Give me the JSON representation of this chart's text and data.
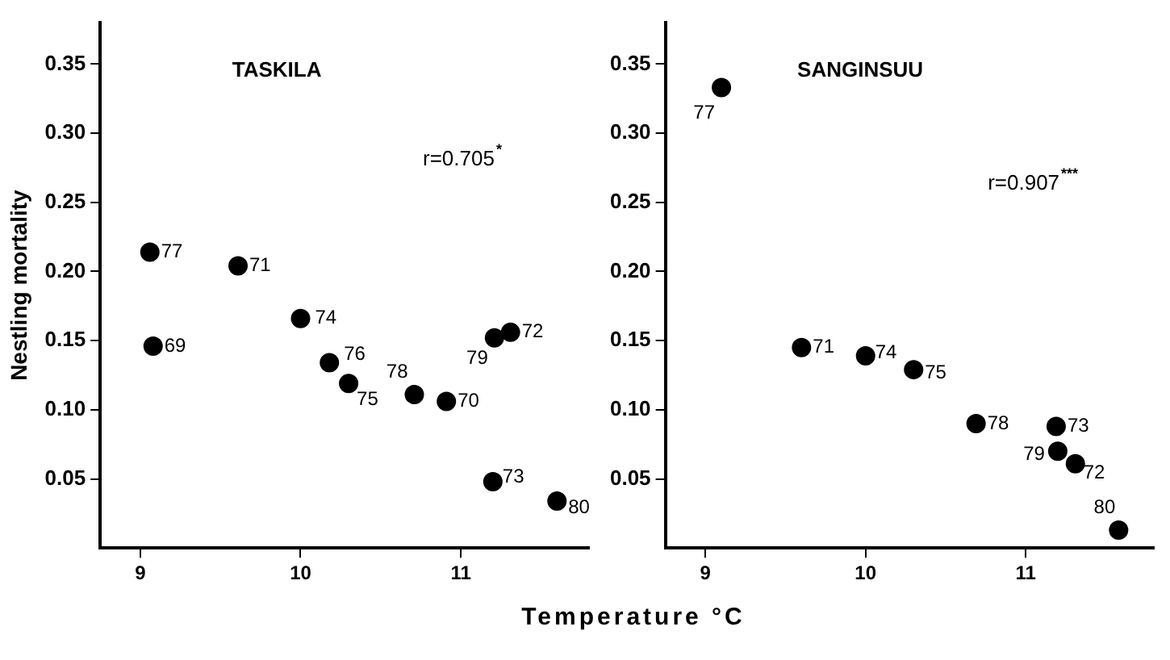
{
  "chart_data": [
    {
      "type": "scatter",
      "title": "TASKILA",
      "ylabel": "Nestling mortality",
      "xlabel": "Temperature °C",
      "xlim": [
        8.75,
        11.8
      ],
      "ylim": [
        0,
        0.38
      ],
      "xticks": [
        9,
        10,
        11
      ],
      "yticks": [
        {
          "value": 0.05,
          "label": "0.05"
        },
        {
          "value": 0.1,
          "label": "0.10"
        },
        {
          "value": 0.15,
          "label": "0.15"
        },
        {
          "value": 0.2,
          "label": "0.20"
        },
        {
          "value": 0.25,
          "label": "0.25"
        },
        {
          "value": 0.3,
          "label": "0.30"
        },
        {
          "value": 0.35,
          "label": "0.35"
        }
      ],
      "grid": false,
      "marker": "circle",
      "legend": false,
      "series": [
        {
          "color": "#000000",
          "x": [
            9.06,
            9.61,
            10.0,
            9.08,
            10.18,
            10.3,
            10.71,
            10.91,
            11.21,
            11.31,
            11.2,
            11.6
          ],
          "values": [
            0.214,
            0.204,
            0.166,
            0.146,
            0.134,
            0.119,
            0.111,
            0.106,
            0.152,
            0.156,
            0.048,
            0.034
          ]
        }
      ],
      "annotations": [
        "r=0.705$^{*}$",
        {
          "text": "77",
          "x": 9.06,
          "y": 0.214
        },
        {
          "text": "71",
          "x": 9.61,
          "y": 0.204
        },
        {
          "text": "74",
          "x": 10.0,
          "y": 0.166
        },
        {
          "text": "69",
          "x": 9.08,
          "y": 0.146
        },
        {
          "text": "76",
          "x": 10.18,
          "y": 0.134
        },
        {
          "text": "75",
          "x": 10.3,
          "y": 0.119
        },
        {
          "text": "78",
          "x": 10.71,
          "y": 0.111
        },
        {
          "text": "70",
          "x": 10.91,
          "y": 0.106
        },
        {
          "text": "79",
          "x": 11.21,
          "y": 0.152
        },
        {
          "text": "72",
          "x": 11.31,
          "y": 0.156
        },
        {
          "text": "73",
          "x": 11.2,
          "y": 0.048
        },
        {
          "text": "80",
          "x": 11.6,
          "y": 0.034
        }
      ]
    },
    {
      "type": "scatter",
      "title": "SANGINSUU",
      "xlim": [
        8.75,
        11.8
      ],
      "ylim": [
        0,
        0.38
      ],
      "xticks": [
        9,
        10,
        11
      ],
      "yticks": [
        {
          "value": 0.05,
          "label": "0.05"
        },
        {
          "value": 0.1,
          "label": "0.10"
        },
        {
          "value": 0.15,
          "label": "0.15"
        },
        {
          "value": 0.2,
          "label": "0.20"
        },
        {
          "value": 0.25,
          "label": "0.25"
        },
        {
          "value": 0.3,
          "label": "0.30"
        },
        {
          "value": 0.35,
          "label": "0.35"
        }
      ],
      "grid": false,
      "marker": "circle",
      "legend": false,
      "series": [
        {
          "color": "#000000",
          "x": [
            9.1,
            9.6,
            10.0,
            10.3,
            10.69,
            11.19,
            11.2,
            11.31,
            11.58
          ],
          "values": [
            0.333,
            0.145,
            0.139,
            0.129,
            0.09,
            0.088,
            0.07,
            0.061,
            0.013
          ]
        }
      ],
      "annotations": [
        "r=0.907$^{***}$",
        {
          "text": "77",
          "x": 9.1,
          "y": 0.333
        },
        {
          "text": "71",
          "x": 9.6,
          "y": 0.145
        },
        {
          "text": "74",
          "x": 10.0,
          "y": 0.139
        },
        {
          "text": "75",
          "x": 10.3,
          "y": 0.129
        },
        {
          "text": "78",
          "x": 10.69,
          "y": 0.09
        },
        {
          "text": "73",
          "x": 11.19,
          "y": 0.088
        },
        {
          "text": "79",
          "x": 11.2,
          "y": 0.07
        },
        {
          "text": "72",
          "x": 11.31,
          "y": 0.061
        },
        {
          "text": "80",
          "x": 11.58,
          "y": 0.013
        }
      ]
    }
  ]
}
